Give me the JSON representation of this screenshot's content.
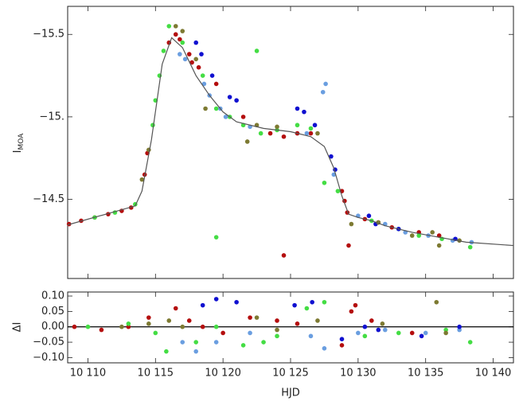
{
  "chart_data": [
    {
      "type": "scatter",
      "ylabel": "I",
      "ylabel_sub": "MOA",
      "xlim": [
        10108.5,
        10141.5
      ],
      "xticks": [
        10110,
        10115,
        10120,
        10125,
        10130,
        10135,
        10140
      ],
      "ylim": [
        -14.02,
        -15.67
      ],
      "yticks": [
        {
          "value": -15.5,
          "label": "−15.5"
        },
        {
          "value": -15,
          "label": "−15."
        },
        {
          "value": -14.5,
          "label": "−14.5"
        }
      ],
      "model": {
        "color": "#555555",
        "x": [
          10108.5,
          10113.5,
          10114,
          10114.7,
          10115.5,
          10116.2,
          10117,
          10118,
          10119,
          10120,
          10121,
          10123,
          10125,
          10126.5,
          10127.5,
          10128.2,
          10128.8,
          10129.3,
          10130,
          10131,
          10132,
          10134,
          10136,
          10138,
          10141.5
        ],
        "values": [
          -14.345,
          -14.46,
          -14.55,
          -14.86,
          -15.32,
          -15.48,
          -15.42,
          -15.25,
          -15.13,
          -15.03,
          -14.97,
          -14.93,
          -14.91,
          -14.88,
          -14.82,
          -14.69,
          -14.52,
          -14.41,
          -14.39,
          -14.37,
          -14.34,
          -14.3,
          -14.27,
          -14.24,
          -14.22
        ]
      },
      "series": [
        {
          "color": "#b40e0e",
          "x": [
            10108.6,
            10109.5,
            10110.5,
            10111.5,
            10112.5,
            10113.2,
            10114.2,
            10114.4,
            10116,
            10116.5,
            10116.8,
            10117.5,
            10117.7,
            10118.2,
            10119.5,
            10121.5,
            10123.5,
            10124.5,
            10125.5,
            10126.5,
            10128.8,
            10129,
            10129.2,
            10129.3,
            10130.5,
            10131.5,
            10132.5,
            10134.5,
            10136,
            10124.5
          ],
          "values": [
            -14.35,
            -14.37,
            -14.39,
            -14.41,
            -14.43,
            -14.45,
            -14.65,
            -14.78,
            -15.45,
            -15.5,
            -15.47,
            -15.38,
            -15.33,
            -15.3,
            -15.2,
            -15.0,
            -14.9,
            -14.88,
            -14.9,
            -14.9,
            -14.55,
            -14.49,
            -14.42,
            -14.22,
            -14.38,
            -14.36,
            -14.33,
            -14.3,
            -14.28,
            -14.16
          ]
        },
        {
          "color": "#44dd44",
          "x": [
            10110.5,
            10112,
            10113.5,
            10114.8,
            10115,
            10115.3,
            10115.6,
            10116,
            10117,
            10118.5,
            10119.5,
            10119.5,
            10120.5,
            10121.5,
            10122.5,
            10122.8,
            10124,
            10125.5,
            10126.5,
            10127.5,
            10128.5,
            10131,
            10133,
            10134.5,
            10136.2,
            10138.3
          ],
          "values": [
            -14.39,
            -14.42,
            -14.47,
            -14.95,
            -15.1,
            -15.25,
            -15.4,
            -15.55,
            -15.45,
            -15.25,
            -14.27,
            -15.05,
            -15.0,
            -14.95,
            -15.4,
            -14.9,
            -14.92,
            -14.95,
            -14.93,
            -14.6,
            -14.55,
            -14.37,
            -14.32,
            -14.28,
            -14.26,
            -14.21
          ]
        },
        {
          "color": "#6a9ee0",
          "x": [
            10116.8,
            10117.2,
            10118.6,
            10119,
            10119.8,
            10120.2,
            10122,
            10126.2,
            10127.4,
            10127.6,
            10128.2,
            10130,
            10132,
            10133.5,
            10135.2,
            10137,
            10138.4
          ],
          "values": [
            -15.38,
            -15.35,
            -15.2,
            -15.13,
            -15.05,
            -15.0,
            -14.94,
            -14.9,
            -15.15,
            -15.2,
            -14.65,
            -14.4,
            -14.35,
            -14.3,
            -14.28,
            -14.25,
            -14.24
          ]
        },
        {
          "color": "#1010d0",
          "x": [
            10118,
            10118.4,
            10119.2,
            10120.5,
            10121,
            10125.5,
            10126,
            10126.8,
            10128,
            10128.3,
            10130.8,
            10131.3,
            10133,
            10137.2
          ],
          "values": [
            -15.45,
            -15.38,
            -15.25,
            -15.12,
            -15.1,
            -15.05,
            -15.03,
            -14.95,
            -14.76,
            -14.68,
            -14.4,
            -14.35,
            -14.32,
            -14.26
          ]
        },
        {
          "color": "#7d7a32",
          "x": [
            10114,
            10114.5,
            10116.5,
            10117,
            10118,
            10118.7,
            10121.8,
            10122.5,
            10124,
            10127,
            10129.5,
            10131.5,
            10134,
            10135.5,
            10136,
            10137.5
          ],
          "values": [
            -14.62,
            -14.8,
            -15.55,
            -15.52,
            -15.35,
            -15.05,
            -14.85,
            -14.95,
            -14.94,
            -14.9,
            -14.35,
            -14.36,
            -14.28,
            -14.3,
            -14.22,
            -14.25
          ]
        }
      ]
    },
    {
      "type": "scatter",
      "xlabel": "HJD",
      "ylabel": "ΔI",
      "xlim": [
        10108.5,
        10141.5
      ],
      "xticks": [
        {
          "value": 10110,
          "label": "10 110"
        },
        {
          "value": 10115,
          "label": "10 115"
        },
        {
          "value": 10120,
          "label": "10 120"
        },
        {
          "value": 10125,
          "label": "10 125"
        },
        {
          "value": 10130,
          "label": "10 130"
        },
        {
          "value": 10135,
          "label": "10 135"
        },
        {
          "value": 10140,
          "label": "10 140"
        }
      ],
      "ylim": [
        -0.117,
        0.113
      ],
      "yticks": [
        {
          "value": 0.1,
          "label": "0.10"
        },
        {
          "value": 0.05,
          "label": "0.05"
        },
        {
          "value": 0,
          "label": "0.00"
        },
        {
          "value": -0.05,
          "label": "−0.05"
        },
        {
          "value": -0.1,
          "label": "−0.10"
        }
      ],
      "zero_line": 0,
      "series": [
        {
          "color": "#b40e0e",
          "x": [
            10109,
            10111,
            10113,
            10114.5,
            10116.5,
            10117.5,
            10118.5,
            10120,
            10122,
            10124,
            10125.5,
            10128.8,
            10129.5,
            10129.8,
            10131,
            10134
          ],
          "values": [
            0,
            -0.01,
            0,
            0.03,
            0.06,
            0.02,
            0,
            -0.02,
            0.03,
            0.02,
            0.01,
            -0.06,
            0.05,
            0.07,
            0.02,
            -0.02
          ]
        },
        {
          "color": "#44dd44",
          "x": [
            10110,
            10113,
            10115,
            10115.8,
            10118,
            10119.5,
            10121.5,
            10123,
            10124,
            10126.2,
            10127.5,
            10130.5,
            10133,
            10136.5,
            10138.3
          ],
          "values": [
            0,
            0.01,
            -0.02,
            -0.08,
            -0.05,
            0,
            -0.06,
            -0.05,
            -0.03,
            0.06,
            0.08,
            -0.03,
            -0.02,
            -0.01,
            -0.05
          ]
        },
        {
          "color": "#6a9ee0",
          "x": [
            10117,
            10118,
            10119.5,
            10122,
            10126.5,
            10127.5,
            10130,
            10132,
            10135,
            10137.5
          ],
          "values": [
            -0.05,
            -0.08,
            -0.05,
            -0.02,
            -0.03,
            -0.07,
            -0.02,
            -0.01,
            -0.02,
            -0.01
          ]
        },
        {
          "color": "#1010d0",
          "x": [
            10118.5,
            10119.5,
            10121,
            10125.3,
            10126.6,
            10128.8,
            10130.5,
            10131.5,
            10134.7,
            10137.5
          ],
          "values": [
            0.07,
            0.09,
            0.08,
            0.07,
            0.08,
            -0.04,
            0,
            -0.01,
            -0.03,
            0
          ]
        },
        {
          "color": "#7d7a32",
          "x": [
            10112.5,
            10114.5,
            10116,
            10117,
            10122.5,
            10124,
            10127,
            10131.8,
            10135.8,
            10136.5
          ],
          "values": [
            0,
            0.01,
            0.02,
            0,
            0.03,
            -0.01,
            0.02,
            0.01,
            0.08,
            -0.02
          ]
        }
      ]
    }
  ]
}
